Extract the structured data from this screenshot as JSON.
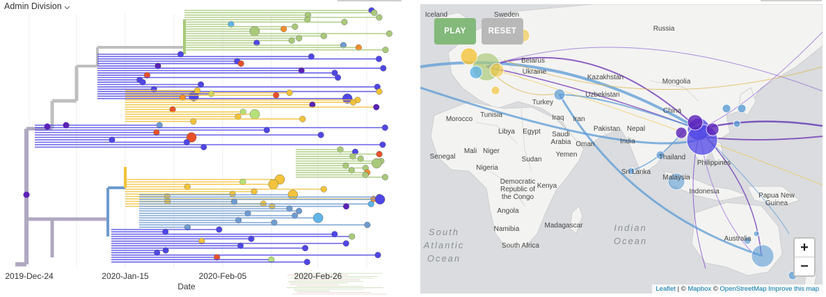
{
  "tree": {
    "color_by_label": "Admin Division",
    "x_axis_label": "Date",
    "date_ticks": [
      "2019-Dec-24",
      "2020-Jan-15",
      "2020-Feb-05",
      "2020-Feb-26"
    ],
    "colors": {
      "root": "#b0a8c0",
      "grey": "#bfbfbf",
      "purple": "#5b21b6",
      "blue": "#4f46e5",
      "lightblue": "#5fb3e6",
      "steel": "#6e9bd0",
      "green": "#a9c97a",
      "yellow": "#f2c33a",
      "red": "#e8512a",
      "orange": "#f28c2a",
      "lime": "#b5e07a"
    }
  },
  "map": {
    "buttons": {
      "play": "PLAY",
      "reset": "RESET"
    },
    "zoom": {
      "in": "+",
      "out": "−"
    },
    "attribution": {
      "leaflet": "Leaflet",
      "sep1": " | © ",
      "mapbox": "Mapbox",
      "sep2": " © ",
      "osm": "OpenStreetMap",
      "improve": "Improve this map"
    },
    "labels": {
      "iceland": "Iceland",
      "sweden": "Sweden",
      "russia": "Russia",
      "belarus": "Belarus",
      "ukraine": "Ukraine",
      "kazakhstan": "Kazakhstan",
      "mongolia": "Mongolia",
      "uzbekistan": "Uzbekistan",
      "turkey": "Turkey",
      "tunisia": "Tunisia",
      "morocco": "Morocco",
      "iraq": "Iraq",
      "iran": "Iran",
      "pakistan": "Pakistan",
      "nepal": "Nepal",
      "china": "China",
      "libya": "Libya",
      "egypt": "Egypt",
      "saudi": "Saudi\nArabia",
      "oman": "Oman",
      "india": "India",
      "yemen": "Yemen",
      "mali": "Mali",
      "niger": "Niger",
      "senegal": "Senegal",
      "nigeria": "Nigeria",
      "sudan": "Sudan",
      "thailand": "Thailand",
      "philippines": "Philippines",
      "srilanka": "Sri Lanka",
      "malaysia": "Malaysia",
      "indonesia": "Indonesia",
      "drc": "Democratic\nRepublic of\nthe Congo",
      "kenya": "Kenya",
      "angola": "Angola",
      "png": "Papua New\nGuinea",
      "namibia": "Namibia",
      "madagascar": "Madagascar",
      "southafrica": "South Africa",
      "australia": "Australia"
    },
    "oceans": {
      "south_atlantic": "South\nAtlantic\nOcean",
      "indian": "Indian\nOcean"
    }
  }
}
